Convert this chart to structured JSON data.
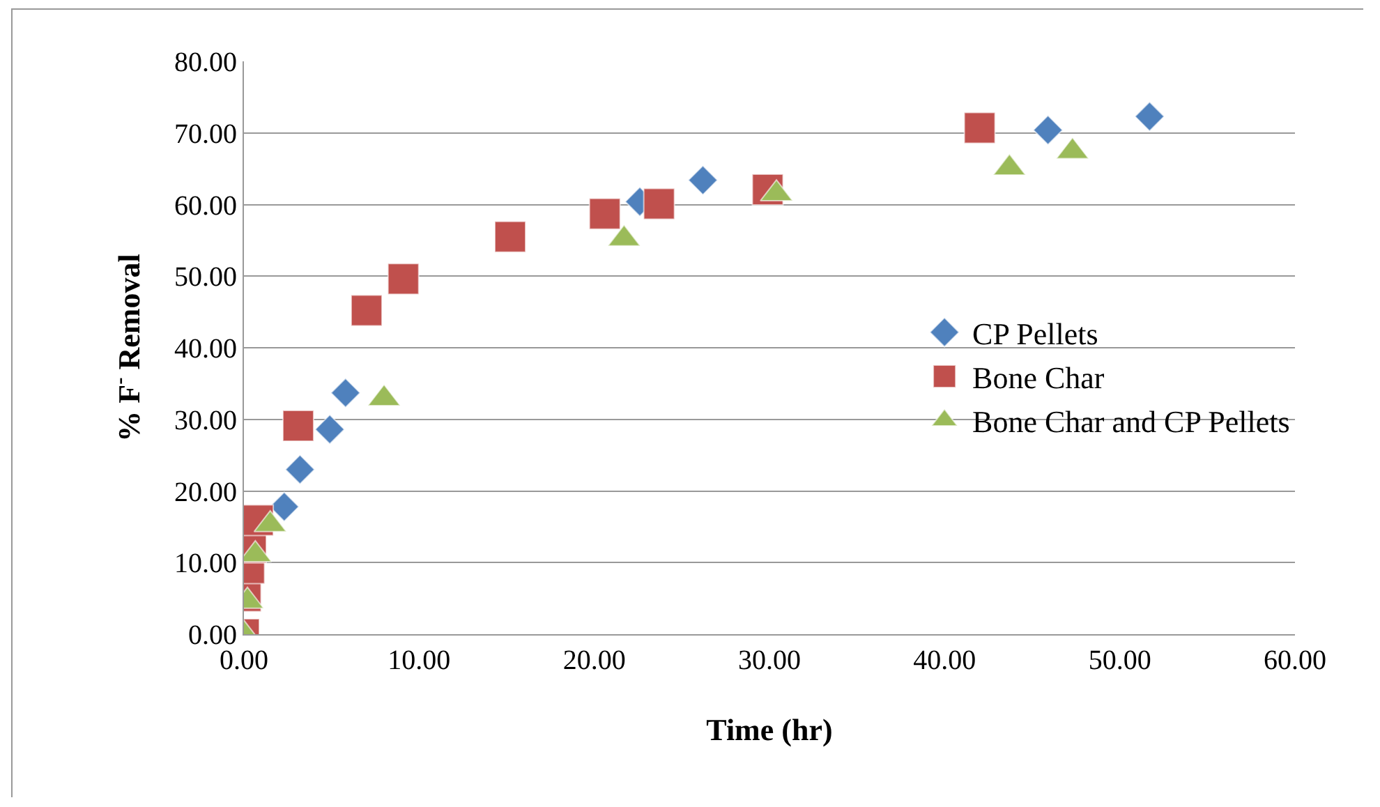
{
  "chart_data": {
    "type": "scatter",
    "xlabel": "Time (hr)",
    "ylabel": "% F$^{-}$ Removal",
    "series": [
      {
        "name": "CP Pellets",
        "color": "#4f81bd",
        "marker": "diamond",
        "x": [
          2.3,
          3.2,
          4.9,
          5.8,
          22.6,
          26.2,
          45.9,
          51.7
        ],
        "values": [
          17.8,
          23.0,
          28.6,
          33.7,
          60.4,
          63.4,
          70.4,
          72.3
        ]
      },
      {
        "name": "Bone Char",
        "color": "#c0504d",
        "marker": "square",
        "x": [
          0,
          0.1,
          0.3,
          0.4,
          0.8,
          3.1,
          7.0,
          9.1,
          15.2,
          20.6,
          23.7,
          29.9,
          42.0
        ],
        "values": [
          0,
          5.3,
          9.2,
          12.1,
          15.9,
          29.1,
          45.2,
          49.6,
          55.5,
          58.7,
          60.1,
          62.1,
          70.7
        ]
      },
      {
        "name": "Bone Char and CP Pellets",
        "color": "#9bbb59",
        "marker": "triangle",
        "x": [
          0,
          0.2,
          0.65,
          1.5,
          8.0,
          21.7,
          30.4,
          43.7,
          47.3
        ],
        "values": [
          0,
          4.6,
          11.1,
          15.3,
          32.9,
          55.2,
          61.5,
          65.1,
          67.4
        ]
      }
    ],
    "xlim": [
      0,
      60
    ],
    "xticks": [
      {
        "value": 0,
        "label": "0.00"
      },
      {
        "value": 10,
        "label": "10.00"
      },
      {
        "value": 20,
        "label": "20.00"
      },
      {
        "value": 30,
        "label": "30.00"
      },
      {
        "value": 40,
        "label": "40.00"
      },
      {
        "value": 50,
        "label": "50.00"
      },
      {
        "value": 60,
        "label": "60.00"
      }
    ],
    "ylim": [
      0,
      80
    ],
    "yticks": [
      {
        "value": 0,
        "label": "0.00"
      },
      {
        "value": 10,
        "label": "10.00"
      },
      {
        "value": 20,
        "label": "20.00"
      },
      {
        "value": 30,
        "label": "30.00"
      },
      {
        "value": 40,
        "label": "40.00"
      },
      {
        "value": 50,
        "label": "50.00"
      },
      {
        "value": 60,
        "label": "60.00"
      },
      {
        "value": 70,
        "label": "70.00"
      },
      {
        "value": 80,
        "label": "80.00"
      }
    ],
    "grid": "y",
    "legend": "right"
  }
}
